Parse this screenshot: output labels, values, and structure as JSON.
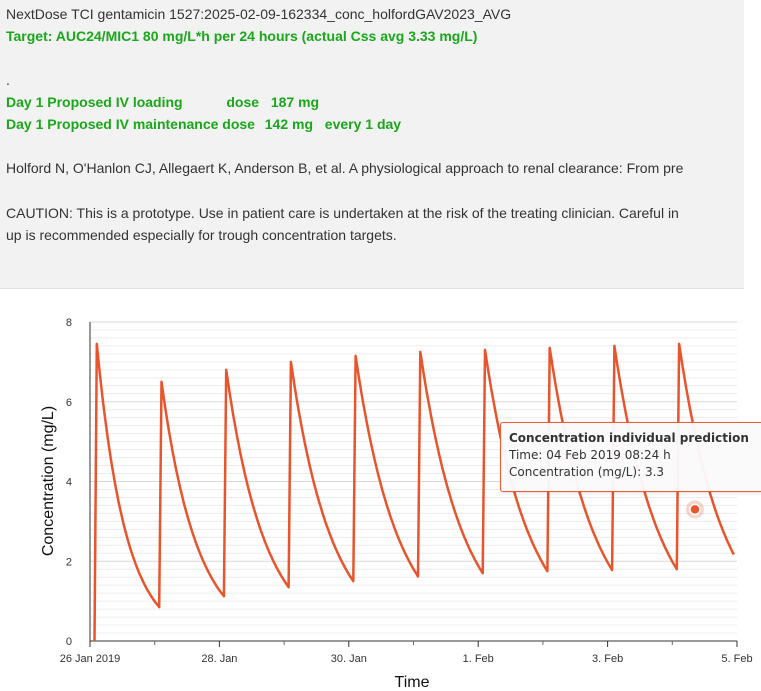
{
  "header": {
    "title_line": "NextDose TCI gentamicin 1527:2025-02-09-162334_conc_holfordGAV2023_AVG",
    "target_line": "Target: AUC24/MIC1 80 mg/L*h per 24 hours (actual Css avg 3.33 mg/L)",
    "dot": ".",
    "loading": {
      "label": "Day 1 Proposed IV loading",
      "dose_label": "dose",
      "value": "187 mg"
    },
    "maintenance": {
      "label": "Day 1 Proposed IV maintenance dose",
      "value": "142 mg",
      "frequency": "every 1 day"
    },
    "reference": "Holford N, O'Hanlon CJ, Allegaert K, Anderson B, et al. A physiological approach to renal clearance: From pre",
    "caution_line1": "CAUTION: This is a prototype. Use in patient care is undertaken at the risk of the treating clinician. Careful in",
    "caution_line2": "up is recommended especially for trough concentration targets."
  },
  "colors": {
    "series": "#e8552d",
    "target_text": "#1aa71a",
    "header_bg": "#f2f2f2"
  },
  "chart_data": {
    "type": "line",
    "xlabel": "Time",
    "ylabel": "Concentration (mg/L)",
    "ylim": [
      0,
      8
    ],
    "y_ticks": [
      "0",
      "2",
      "4",
      "6",
      "8"
    ],
    "x_tick_labels": [
      "26 Jan 2019",
      "28. Jan",
      "30. Jan",
      "1. Feb",
      "3. Feb",
      "5. Feb"
    ],
    "x_unit": "days since 26 Jan 2019 00:00",
    "grid": true,
    "series": [
      {
        "dose_times": [
          0.07,
          1.07,
          2.07,
          3.07,
          4.07,
          5.07,
          6.07,
          7.07,
          8.07,
          9.07
        ],
        "peaks": [
          7.45,
          6.5,
          6.8,
          7.0,
          7.15,
          7.25,
          7.3,
          7.35,
          7.4,
          7.45
        ],
        "troughs": [
          0.85,
          1.12,
          1.35,
          1.5,
          1.62,
          1.7,
          1.75,
          1.78,
          1.8,
          1.82
        ],
        "end_time": 9.95
      }
    ],
    "tooltip": {
      "title": "Concentration individual prediction",
      "time_line": "Time: 04 Feb 2019 08:24 h",
      "value_line": "Concentration (mg/L): 3.3",
      "x": 9.35,
      "y": 3.3
    }
  }
}
